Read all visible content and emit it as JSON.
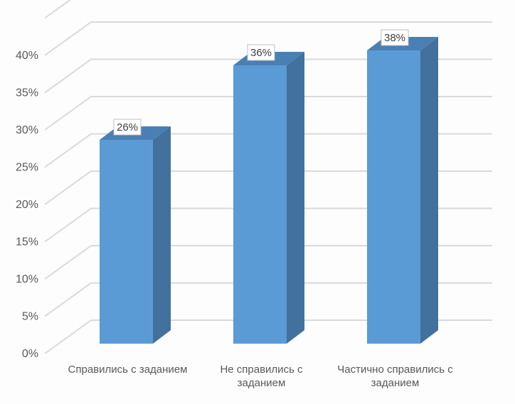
{
  "chart_data": {
    "type": "bar",
    "categories": [
      [
        "Справились с заданием"
      ],
      [
        "Не справились с",
        "заданием"
      ],
      [
        "Частично справились с",
        "заданием"
      ]
    ],
    "values": [
      26,
      36,
      38
    ],
    "value_unit": "%",
    "y_ticks": [
      "0%",
      "5%",
      "10%",
      "15%",
      "20%",
      "25%",
      "30%",
      "35%",
      "40%"
    ],
    "ylim": [
      0,
      40
    ],
    "grid": true,
    "style": "3d-column",
    "colors": {
      "front": "#5b9bd5",
      "side": "#41719c",
      "top": "#4a7fb4",
      "grid": "#d9d9d9",
      "label_box_border": "#bfbfbf"
    }
  }
}
